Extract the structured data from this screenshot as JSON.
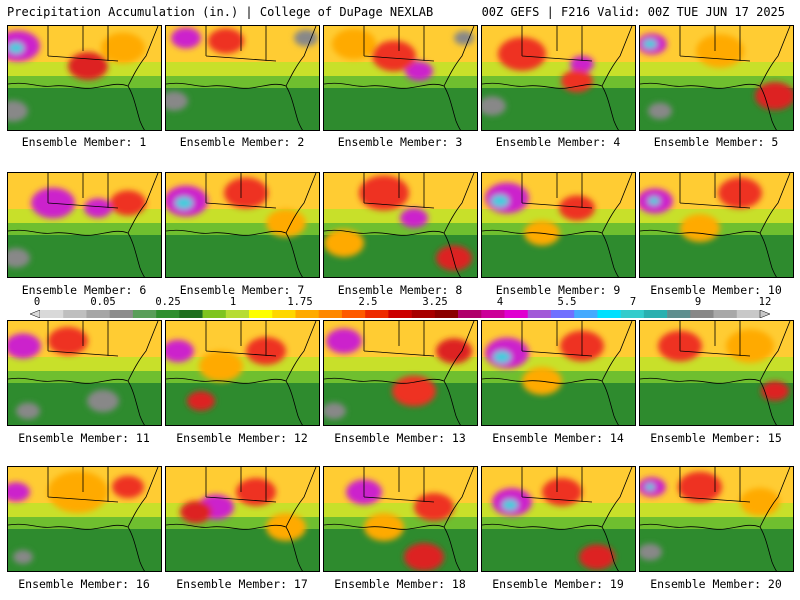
{
  "header": {
    "left": "Precipitation Accumulation (in.) | College of DuPage NEXLAB",
    "right": "00Z GEFS | F216 Valid: 00Z TUE JUN 17 2025"
  },
  "label_prefix": "Ensemble Member:",
  "members": [
    {
      "id": 1,
      "label": "Ensemble Member: 1",
      "blobs": [
        {
          "c": "#cc22cc",
          "cx": 10,
          "cy": 20,
          "r": 22
        },
        {
          "c": "#44ccdd",
          "cx": 8,
          "cy": 22,
          "r": 8
        },
        {
          "c": "#dd2222",
          "cx": 80,
          "cy": 40,
          "r": 20
        },
        {
          "c": "#ffaa00",
          "cx": 115,
          "cy": 22,
          "r": 22
        },
        {
          "c": "#888888",
          "cx": 5,
          "cy": 85,
          "r": 15
        }
      ]
    },
    {
      "id": 2,
      "label": "Ensemble Member: 2",
      "blobs": [
        {
          "c": "#cc22cc",
          "cx": 20,
          "cy": 12,
          "r": 15
        },
        {
          "c": "#ee3322",
          "cx": 60,
          "cy": 15,
          "r": 18
        },
        {
          "c": "#888888",
          "cx": 140,
          "cy": 12,
          "r": 12
        },
        {
          "c": "#888888",
          "cx": 8,
          "cy": 75,
          "r": 14
        }
      ]
    },
    {
      "id": 3,
      "label": "Ensemble Member: 3",
      "blobs": [
        {
          "c": "#cc22cc",
          "cx": 95,
          "cy": 45,
          "r": 14
        },
        {
          "c": "#ee3322",
          "cx": 70,
          "cy": 30,
          "r": 22
        },
        {
          "c": "#ffaa00",
          "cx": 30,
          "cy": 18,
          "r": 22
        },
        {
          "c": "#888888",
          "cx": 140,
          "cy": 12,
          "r": 10
        }
      ]
    },
    {
      "id": 4,
      "label": "Ensemble Member: 4",
      "blobs": [
        {
          "c": "#cc22cc",
          "cx": 100,
          "cy": 38,
          "r": 12
        },
        {
          "c": "#ee3322",
          "cx": 40,
          "cy": 28,
          "r": 24
        },
        {
          "c": "#ee3322",
          "cx": 95,
          "cy": 55,
          "r": 16
        },
        {
          "c": "#888888",
          "cx": 10,
          "cy": 80,
          "r": 14
        }
      ]
    },
    {
      "id": 5,
      "label": "Ensemble Member: 5",
      "blobs": [
        {
          "c": "#cc22cc",
          "cx": 12,
          "cy": 18,
          "r": 15
        },
        {
          "c": "#44ccdd",
          "cx": 10,
          "cy": 18,
          "r": 7
        },
        {
          "c": "#dd2222",
          "cx": 135,
          "cy": 70,
          "r": 20
        },
        {
          "c": "#ffaa00",
          "cx": 80,
          "cy": 25,
          "r": 24
        },
        {
          "c": "#888888",
          "cx": 20,
          "cy": 85,
          "r": 12
        }
      ]
    },
    {
      "id": 6,
      "label": "Ensemble Member: 6",
      "blobs": [
        {
          "c": "#cc22cc",
          "cx": 45,
          "cy": 30,
          "r": 22
        },
        {
          "c": "#cc22cc",
          "cx": 90,
          "cy": 35,
          "r": 14
        },
        {
          "c": "#ee3322",
          "cx": 120,
          "cy": 30,
          "r": 18
        },
        {
          "c": "#888888",
          "cx": 8,
          "cy": 85,
          "r": 14
        }
      ]
    },
    {
      "id": 7,
      "label": "Ensemble Member: 7",
      "blobs": [
        {
          "c": "#cc22cc",
          "cx": 20,
          "cy": 28,
          "r": 22
        },
        {
          "c": "#44ccdd",
          "cx": 18,
          "cy": 30,
          "r": 9
        },
        {
          "c": "#ee3322",
          "cx": 80,
          "cy": 20,
          "r": 22
        },
        {
          "c": "#ffaa00",
          "cx": 120,
          "cy": 50,
          "r": 20
        }
      ]
    },
    {
      "id": 8,
      "label": "Ensemble Member: 8",
      "blobs": [
        {
          "c": "#cc22cc",
          "cx": 90,
          "cy": 45,
          "r": 14
        },
        {
          "c": "#ee3322",
          "cx": 60,
          "cy": 20,
          "r": 25
        },
        {
          "c": "#dd2222",
          "cx": 130,
          "cy": 85,
          "r": 18
        },
        {
          "c": "#ffaa00",
          "cx": 20,
          "cy": 70,
          "r": 20
        }
      ]
    },
    {
      "id": 9,
      "label": "Ensemble Member: 9",
      "blobs": [
        {
          "c": "#cc22cc",
          "cx": 25,
          "cy": 25,
          "r": 22
        },
        {
          "c": "#44ccdd",
          "cx": 18,
          "cy": 28,
          "r": 9
        },
        {
          "c": "#ee3322",
          "cx": 95,
          "cy": 35,
          "r": 18
        },
        {
          "c": "#ffaa00",
          "cx": 60,
          "cy": 60,
          "r": 18
        }
      ]
    },
    {
      "id": 10,
      "label": "Ensemble Member: 10",
      "blobs": [
        {
          "c": "#cc22cc",
          "cx": 15,
          "cy": 28,
          "r": 18
        },
        {
          "c": "#44ccdd",
          "cx": 14,
          "cy": 28,
          "r": 6
        },
        {
          "c": "#ee3322",
          "cx": 100,
          "cy": 20,
          "r": 22
        },
        {
          "c": "#ffaa00",
          "cx": 60,
          "cy": 55,
          "r": 20
        }
      ]
    },
    {
      "id": 11,
      "label": "Ensemble Member: 11",
      "blobs": [
        {
          "c": "#cc22cc",
          "cx": 15,
          "cy": 25,
          "r": 18
        },
        {
          "c": "#ee3322",
          "cx": 60,
          "cy": 20,
          "r": 20
        },
        {
          "c": "#888888",
          "cx": 95,
          "cy": 80,
          "r": 16
        },
        {
          "c": "#888888",
          "cx": 20,
          "cy": 90,
          "r": 12
        }
      ]
    },
    {
      "id": 12,
      "label": "Ensemble Member: 12",
      "blobs": [
        {
          "c": "#cc22cc",
          "cx": 12,
          "cy": 30,
          "r": 16
        },
        {
          "c": "#ee3322",
          "cx": 100,
          "cy": 30,
          "r": 20
        },
        {
          "c": "#ffaa00",
          "cx": 55,
          "cy": 45,
          "r": 22
        },
        {
          "c": "#dd2222",
          "cx": 35,
          "cy": 80,
          "r": 14
        }
      ]
    },
    {
      "id": 13,
      "label": "Ensemble Member: 13",
      "blobs": [
        {
          "c": "#cc22cc",
          "cx": 20,
          "cy": 20,
          "r": 18
        },
        {
          "c": "#ee3322",
          "cx": 90,
          "cy": 70,
          "r": 22
        },
        {
          "c": "#dd2222",
          "cx": 130,
          "cy": 30,
          "r": 18
        },
        {
          "c": "#888888",
          "cx": 10,
          "cy": 90,
          "r": 12
        }
      ]
    },
    {
      "id": 14,
      "label": "Ensemble Member: 14",
      "blobs": [
        {
          "c": "#cc22cc",
          "cx": 25,
          "cy": 32,
          "r": 22
        },
        {
          "c": "#44ccdd",
          "cx": 20,
          "cy": 36,
          "r": 9
        },
        {
          "c": "#ee3322",
          "cx": 100,
          "cy": 25,
          "r": 22
        },
        {
          "c": "#ffaa00",
          "cx": 60,
          "cy": 60,
          "r": 20
        }
      ]
    },
    {
      "id": 15,
      "label": "Ensemble Member: 15",
      "blobs": [
        {
          "c": "#ee3322",
          "cx": 40,
          "cy": 25,
          "r": 22
        },
        {
          "c": "#ffaa00",
          "cx": 110,
          "cy": 25,
          "r": 24
        },
        {
          "c": "#dd2222",
          "cx": 135,
          "cy": 70,
          "r": 14
        }
      ]
    },
    {
      "id": 16,
      "label": "Ensemble Member: 16",
      "blobs": [
        {
          "c": "#cc22cc",
          "cx": 8,
          "cy": 25,
          "r": 14
        },
        {
          "c": "#ffaa00",
          "cx": 70,
          "cy": 25,
          "r": 30
        },
        {
          "c": "#ee3322",
          "cx": 120,
          "cy": 20,
          "r": 16
        },
        {
          "c": "#888888",
          "cx": 15,
          "cy": 90,
          "r": 10
        }
      ]
    },
    {
      "id": 17,
      "label": "Ensemble Member: 17",
      "blobs": [
        {
          "c": "#cc22cc",
          "cx": 50,
          "cy": 40,
          "r": 18
        },
        {
          "c": "#dd2222",
          "cx": 30,
          "cy": 45,
          "r": 16
        },
        {
          "c": "#ee3322",
          "cx": 90,
          "cy": 25,
          "r": 20
        },
        {
          "c": "#ffaa00",
          "cx": 120,
          "cy": 60,
          "r": 20
        }
      ]
    },
    {
      "id": 18,
      "label": "Ensemble Member: 18",
      "blobs": [
        {
          "c": "#cc22cc",
          "cx": 40,
          "cy": 25,
          "r": 18
        },
        {
          "c": "#dd2222",
          "cx": 100,
          "cy": 90,
          "r": 20
        },
        {
          "c": "#ee3322",
          "cx": 110,
          "cy": 40,
          "r": 20
        },
        {
          "c": "#ffaa00",
          "cx": 60,
          "cy": 60,
          "r": 20
        }
      ]
    },
    {
      "id": 19,
      "label": "Ensemble Member: 19",
      "blobs": [
        {
          "c": "#cc22cc",
          "cx": 30,
          "cy": 35,
          "r": 20
        },
        {
          "c": "#44ccdd",
          "cx": 28,
          "cy": 38,
          "r": 8
        },
        {
          "c": "#dd2222",
          "cx": 115,
          "cy": 90,
          "r": 18
        },
        {
          "c": "#ee3322",
          "cx": 80,
          "cy": 25,
          "r": 20
        }
      ]
    },
    {
      "id": 20,
      "label": "Ensemble Member: 20",
      "blobs": [
        {
          "c": "#cc22cc",
          "cx": 12,
          "cy": 20,
          "r": 14
        },
        {
          "c": "#44ccdd",
          "cx": 10,
          "cy": 20,
          "r": 5
        },
        {
          "c": "#ee3322",
          "cx": 60,
          "cy": 20,
          "r": 22
        },
        {
          "c": "#ffaa00",
          "cx": 120,
          "cy": 35,
          "r": 20
        },
        {
          "c": "#888888",
          "cx": 10,
          "cy": 85,
          "r": 12
        }
      ]
    }
  ],
  "colorbar": {
    "ticks": [
      "0",
      "0.05",
      "0.25",
      "1",
      "1.75",
      "2.5",
      "3.25",
      "4",
      "5.5",
      "7",
      "9",
      "12"
    ],
    "colors": [
      "#d9d9d9",
      "#bfbfbf",
      "#a6a6a6",
      "#8c8c8c",
      "#5a9e5a",
      "#2f8f2f",
      "#1f6f1f",
      "#7fc41f",
      "#b7dc33",
      "#ffff00",
      "#ffd700",
      "#ffaa00",
      "#ff8800",
      "#ff5a00",
      "#ee2a00",
      "#cc0000",
      "#a80000",
      "#8b0000",
      "#b0006b",
      "#cc0099",
      "#e000d0",
      "#a25ad8",
      "#7070ff",
      "#44aaff",
      "#00e0ff",
      "#33cccc",
      "#2ab0b0",
      "#5f8f8f",
      "#888888",
      "#a8a8a8",
      "#c8c8c8"
    ]
  }
}
